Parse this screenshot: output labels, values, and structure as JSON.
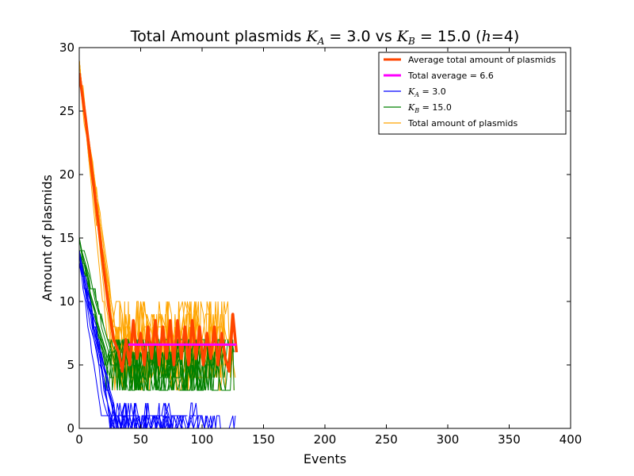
{
  "chart_data": {
    "type": "line",
    "title": {
      "prefix": "Total Amount plasmids ",
      "ka_symbol": "K",
      "ka_sub": "A",
      "ka_value": " = 3.0 vs ",
      "kb_symbol": "K",
      "kb_sub": "B",
      "kb_value": " = 15.0 (",
      "h_symbol": "h",
      "h_value": "=4)"
    },
    "xlabel": "Events",
    "ylabel": "Amount of plasmids",
    "xlim": [
      0,
      400
    ],
    "ylim": [
      0,
      30
    ],
    "xticks": [
      0,
      50,
      100,
      150,
      200,
      250,
      300,
      350,
      400
    ],
    "yticks": [
      0,
      5,
      10,
      15,
      20,
      25,
      30
    ],
    "grid": false,
    "legend_position": "top-right",
    "legend": [
      {
        "label": "Average total amount of plasmids",
        "color": "#ff4500",
        "style": "thick"
      },
      {
        "label": "Total average = 6.6",
        "color": "#ff00ff",
        "style": "thick"
      },
      {
        "label_symbol": "K",
        "label_sub": "A",
        "label_rest": " = 3.0",
        "color": "#0000ff",
        "style": "thin"
      },
      {
        "label_symbol": "K",
        "label_sub": "B",
        "label_rest": " = 15.0",
        "color": "#008000",
        "style": "thin"
      },
      {
        "label": "Total amount of plasmids",
        "color": "#ffa500",
        "style": "thin"
      }
    ],
    "series": [
      {
        "name": "Average total amount of plasmids",
        "color": "#ff4500",
        "x": [
          0,
          5,
          10,
          15,
          20,
          24,
          28,
          32,
          35,
          38,
          41,
          44,
          47,
          50,
          53,
          56,
          59,
          62,
          65,
          68,
          71,
          74,
          77,
          80,
          83,
          86,
          89,
          92,
          95,
          98,
          101,
          104,
          107,
          110,
          113,
          116,
          119,
          122,
          125,
          128
        ],
        "y": [
          28,
          24.5,
          20.5,
          16.5,
          12.5,
          9.5,
          7,
          6,
          4.5,
          7,
          5,
          8.5,
          5.5,
          7.5,
          5,
          8,
          5.5,
          8.5,
          5,
          8,
          5.5,
          8.5,
          5,
          8.5,
          5.5,
          8,
          5,
          8.5,
          5.5,
          8,
          5,
          7.5,
          5.5,
          8,
          5,
          7.5,
          5.5,
          4.5,
          9,
          6
        ]
      },
      {
        "name": "Total average = 6.6",
        "color": "#ff00ff",
        "x": [
          40,
          128
        ],
        "y": [
          6.6,
          6.6
        ]
      }
    ],
    "bands": [
      {
        "name": "Total amount of plasmids",
        "color": "#ffa500",
        "seed": 17,
        "count": 9,
        "x_end": [
          128,
          126,
          124,
          120,
          118,
          115,
          110,
          105,
          100
        ],
        "base": 29,
        "mean": 6.6,
        "spread": 3.5
      },
      {
        "name": "KB = 15.0",
        "color": "#008000",
        "seed": 23,
        "count": 9,
        "x_end": [
          128,
          126,
          124,
          120,
          118,
          115,
          110,
          105,
          100
        ],
        "base": 15,
        "mean": 5,
        "spread": 2.5
      },
      {
        "name": "KA = 3.0",
        "color": "#0000ff",
        "seed": 5,
        "count": 10,
        "x_end": [
          128,
          110,
          100,
          95,
          90,
          85,
          75,
          65,
          55,
          45
        ],
        "base": 14,
        "mean": 0.6,
        "spread": 1
      }
    ]
  }
}
